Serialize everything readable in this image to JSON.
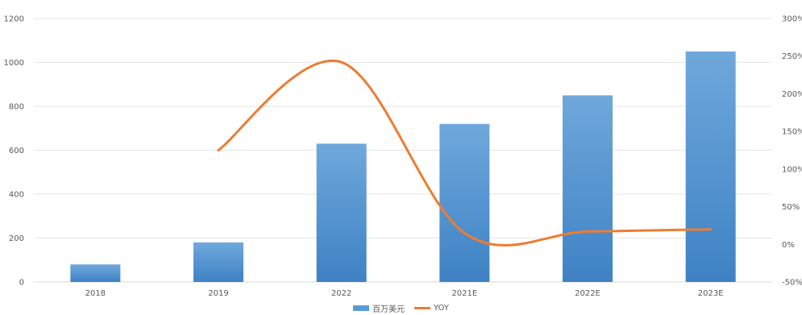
{
  "chart_data": {
    "type": "bar",
    "categories": [
      "2018",
      "2019",
      "2022",
      "2021E",
      "2022E",
      "2023E"
    ],
    "series": [
      {
        "name": "百万美元",
        "type": "bar",
        "axis": "left",
        "color": "#5B9BD5",
        "values": [
          80,
          180,
          630,
          720,
          850,
          1050
        ]
      },
      {
        "name": "YOY",
        "type": "line",
        "axis": "right",
        "color": "#ED7D31",
        "values": [
          null,
          125,
          242,
          15,
          17,
          20
        ]
      }
    ],
    "title": "",
    "xlabel": "",
    "ylabel": "",
    "ylim": [
      0,
      1200
    ],
    "yticks": [
      0,
      200,
      400,
      600,
      800,
      1000,
      1200
    ],
    "y2lim": [
      -50,
      300
    ],
    "y2ticks": [
      "-50%",
      "0%",
      "50%",
      "100%",
      "150%",
      "200%",
      "250%",
      "300%"
    ],
    "grid": true,
    "legend": "bottom-center"
  }
}
